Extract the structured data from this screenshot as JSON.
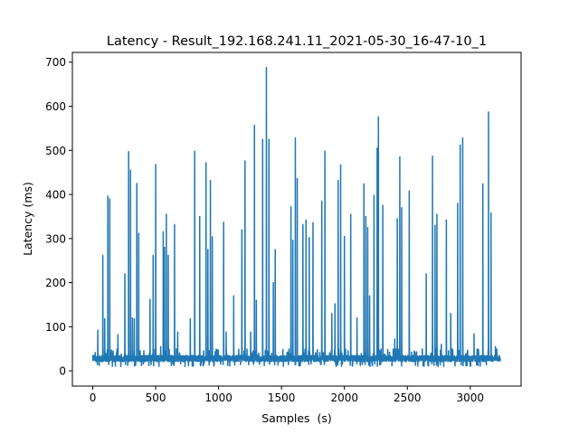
{
  "chart_data": {
    "type": "line",
    "title": "Latency - Result_192.168.241.11_2021-05-30_16-47-10_1",
    "xlabel": "Samples  (s)",
    "ylabel": "Latency (ms)",
    "xlim": [
      -162,
      3404
    ],
    "ylim": [
      -34.5,
      722
    ],
    "xticks": [
      0,
      500,
      1000,
      1500,
      2000,
      2500,
      3000
    ],
    "yticks": [
      0,
      100,
      200,
      300,
      400,
      500,
      600,
      700
    ],
    "grid": false,
    "line_color": "#1f77b4",
    "n_samples": 3240,
    "baseline_ms": 28,
    "spikes": [
      [
        40,
        92
      ],
      [
        80,
        262
      ],
      [
        95,
        118
      ],
      [
        120,
        396
      ],
      [
        135,
        390
      ],
      [
        200,
        82
      ],
      [
        255,
        220
      ],
      [
        285,
        497
      ],
      [
        300,
        455
      ],
      [
        315,
        120
      ],
      [
        330,
        118
      ],
      [
        350,
        425
      ],
      [
        365,
        312
      ],
      [
        455,
        162
      ],
      [
        480,
        262
      ],
      [
        500,
        468
      ],
      [
        540,
        55
      ],
      [
        560,
        315
      ],
      [
        570,
        280
      ],
      [
        585,
        355
      ],
      [
        600,
        262
      ],
      [
        650,
        332
      ],
      [
        675,
        88
      ],
      [
        775,
        118
      ],
      [
        810,
        498
      ],
      [
        850,
        350
      ],
      [
        900,
        472
      ],
      [
        915,
        275
      ],
      [
        935,
        432
      ],
      [
        950,
        304
      ],
      [
        1040,
        337
      ],
      [
        1060,
        88
      ],
      [
        1120,
        170
      ],
      [
        1185,
        320
      ],
      [
        1210,
        476
      ],
      [
        1255,
        88
      ],
      [
        1285,
        557
      ],
      [
        1300,
        160
      ],
      [
        1350,
        525
      ],
      [
        1380,
        688
      ],
      [
        1400,
        525
      ],
      [
        1435,
        200
      ],
      [
        1450,
        275
      ],
      [
        1575,
        372
      ],
      [
        1590,
        296
      ],
      [
        1610,
        528
      ],
      [
        1625,
        436
      ],
      [
        1670,
        332
      ],
      [
        1695,
        342
      ],
      [
        1720,
        302
      ],
      [
        1750,
        336
      ],
      [
        1820,
        385
      ],
      [
        1845,
        498
      ],
      [
        1900,
        130
      ],
      [
        1925,
        152
      ],
      [
        1950,
        432
      ],
      [
        1970,
        467
      ],
      [
        2000,
        305
      ],
      [
        2050,
        355
      ],
      [
        2100,
        120
      ],
      [
        2155,
        424
      ],
      [
        2170,
        350
      ],
      [
        2185,
        325
      ],
      [
        2200,
        170
      ],
      [
        2235,
        398
      ],
      [
        2260,
        505
      ],
      [
        2270,
        576
      ],
      [
        2305,
        375
      ],
      [
        2400,
        72
      ],
      [
        2420,
        345
      ],
      [
        2440,
        485
      ],
      [
        2455,
        370
      ],
      [
        2515,
        408
      ],
      [
        2650,
        220
      ],
      [
        2700,
        487
      ],
      [
        2720,
        330
      ],
      [
        2735,
        355
      ],
      [
        2770,
        60
      ],
      [
        2810,
        342
      ],
      [
        2845,
        130
      ],
      [
        2900,
        380
      ],
      [
        2920,
        512
      ],
      [
        2940,
        528
      ],
      [
        3030,
        84
      ],
      [
        3100,
        424
      ],
      [
        3145,
        587
      ],
      [
        3165,
        358
      ],
      [
        3200,
        55
      ],
      [
        3240,
        280
      ]
    ]
  }
}
